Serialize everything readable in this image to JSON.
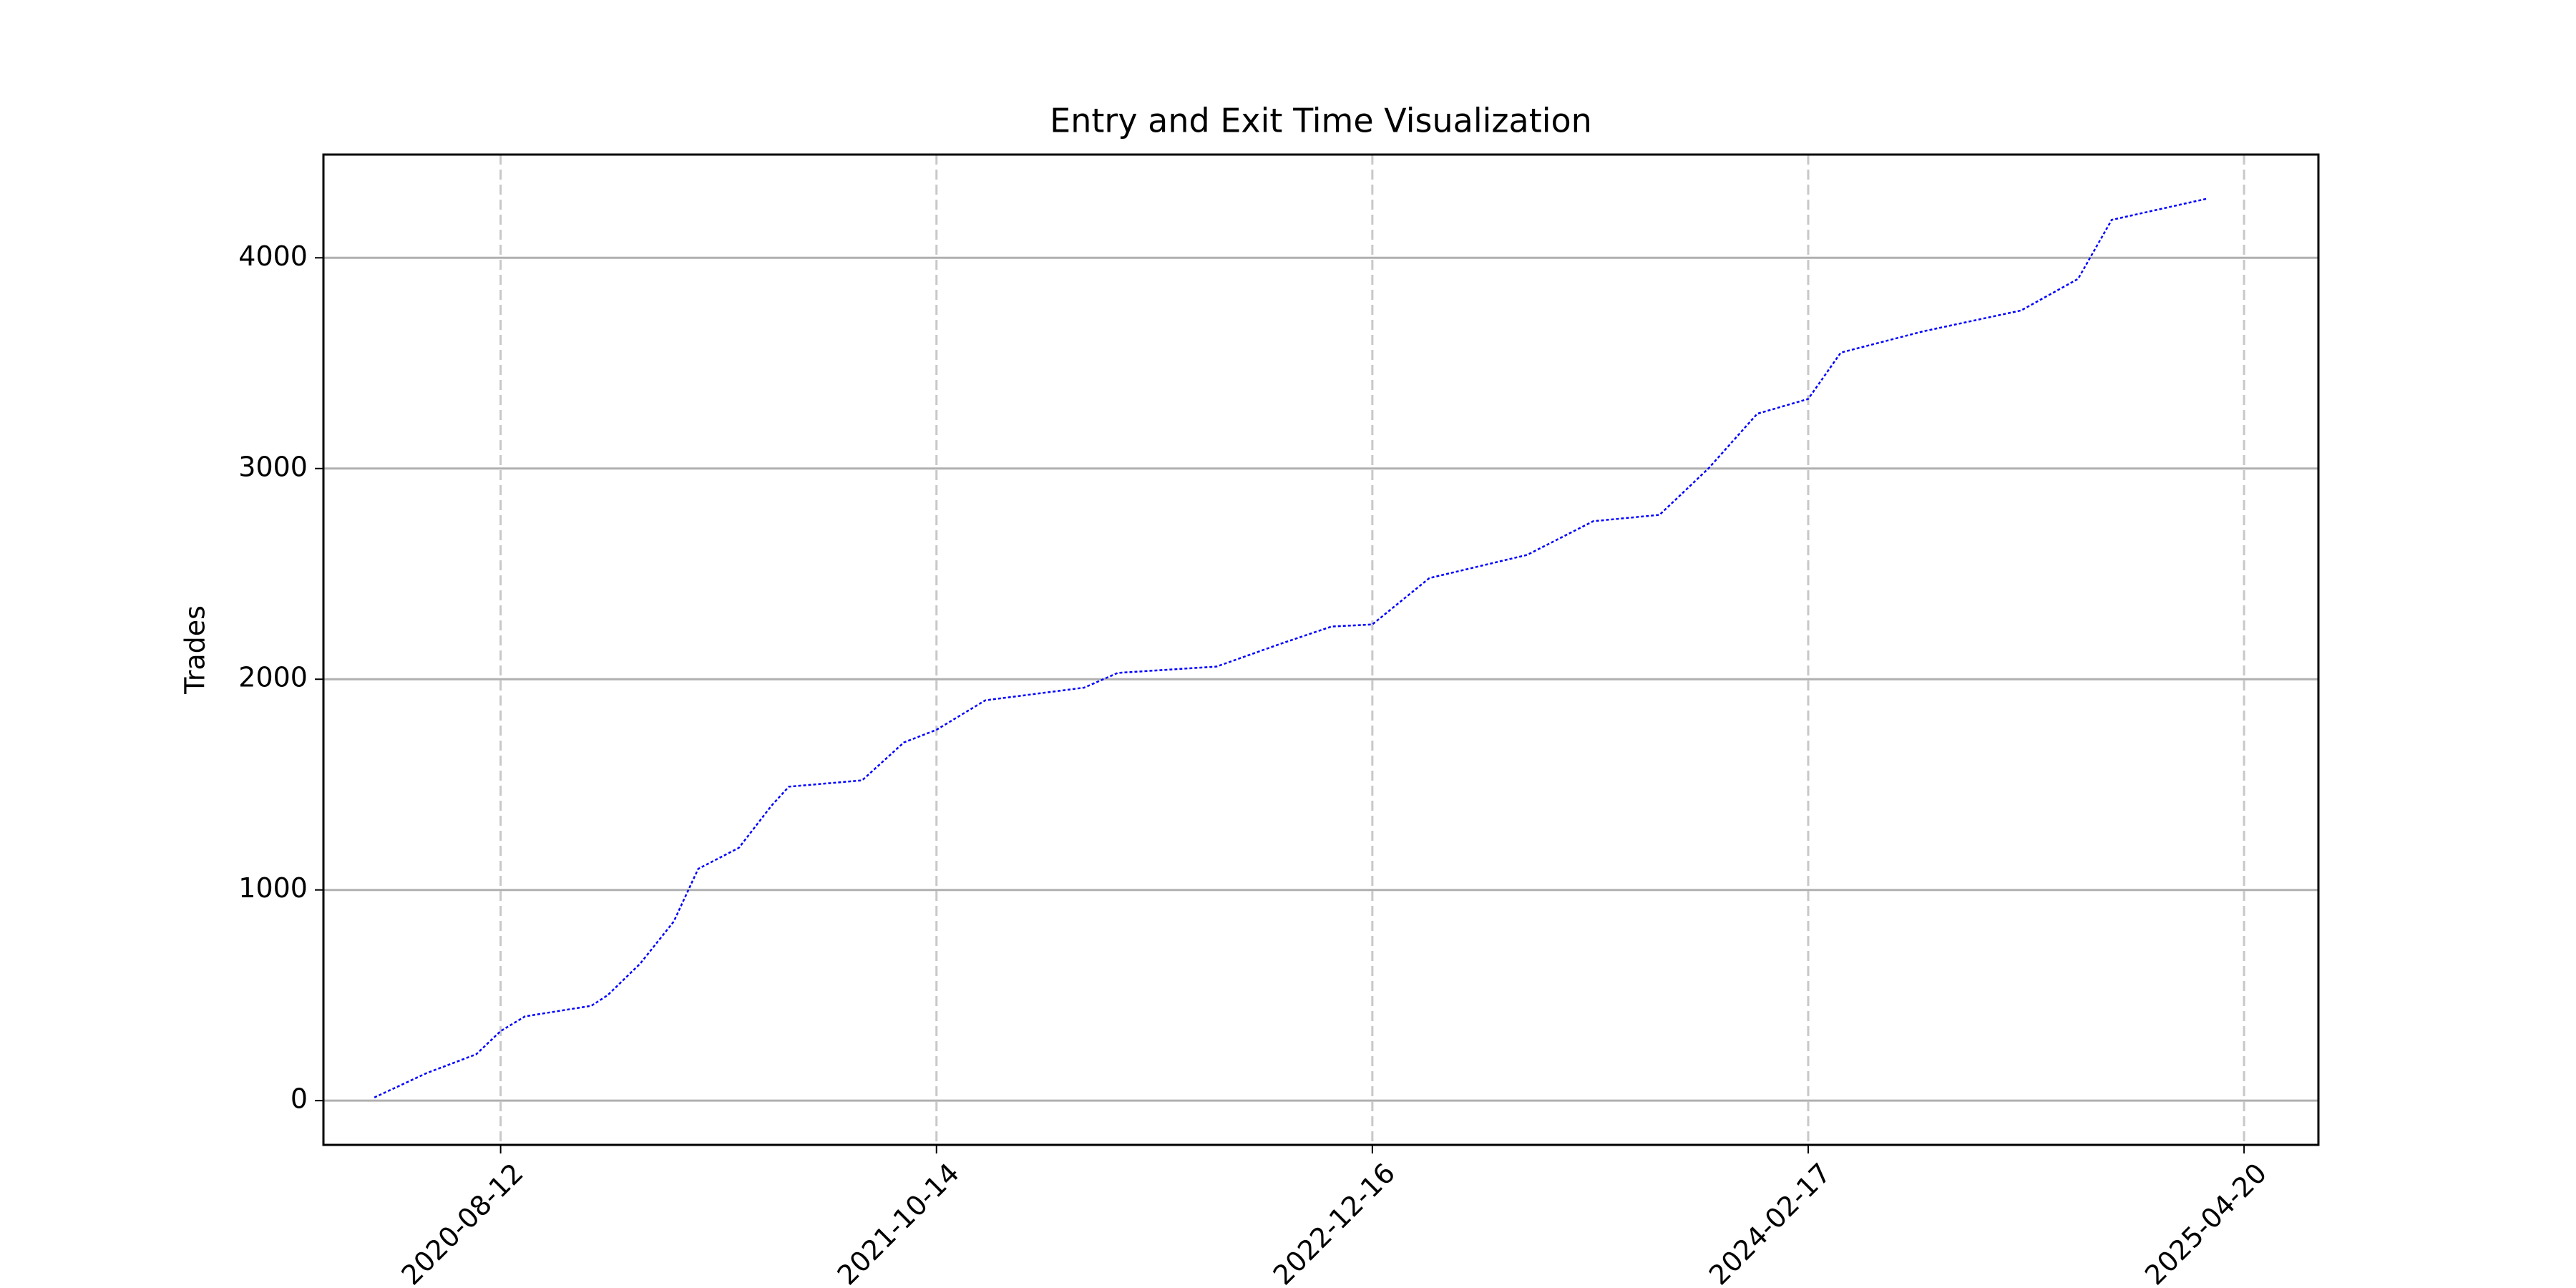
{
  "chart_data": {
    "type": "line",
    "title": "Entry and Exit Time Visualization",
    "y_label": "Trades",
    "x": [
      "2020-04-10",
      "2020-05-31",
      "2020-07-19",
      "2020-08-12",
      "2020-09-05",
      "2020-11-09",
      "2020-11-25",
      "2020-12-27",
      "2021-01-29",
      "2021-02-22",
      "2021-04-03",
      "2021-05-05",
      "2021-05-22",
      "2021-07-09",
      "2021-08-02",
      "2021-09-12",
      "2021-10-14",
      "2021-12-01",
      "2022-03-08",
      "2022-04-10",
      "2022-07-16",
      "2022-09-18",
      "2022-11-06",
      "2022-12-16",
      "2023-02-10",
      "2023-05-17",
      "2023-07-21",
      "2023-09-24",
      "2023-11-11",
      "2023-12-29",
      "2024-02-17",
      "2024-03-20",
      "2024-06-08",
      "2024-09-13",
      "2024-11-08",
      "2024-12-11",
      "2025-03-14"
    ],
    "series": [
      {
        "color": "#0000ff",
        "values": [
          15,
          130,
          220,
          330,
          400,
          450,
          500,
          650,
          850,
          1100,
          1200,
          1400,
          1490,
          1510,
          1520,
          1700,
          1760,
          1900,
          1960,
          2030,
          2060,
          2170,
          2250,
          2260,
          2480,
          2590,
          2750,
          2780,
          3000,
          3260,
          3330,
          3550,
          3650,
          3750,
          3900,
          4180,
          4280
        ]
      }
    ],
    "xlim": [
      "2020-02-20",
      "2025-07-02"
    ],
    "xticks": [
      "2020-08-12",
      "2021-10-14",
      "2022-12-16",
      "2024-02-17",
      "2025-04-20"
    ],
    "ylim": [
      -210,
      4490
    ],
    "yticks": [
      0,
      1000,
      2000,
      3000,
      4000
    ],
    "grid": true
  }
}
